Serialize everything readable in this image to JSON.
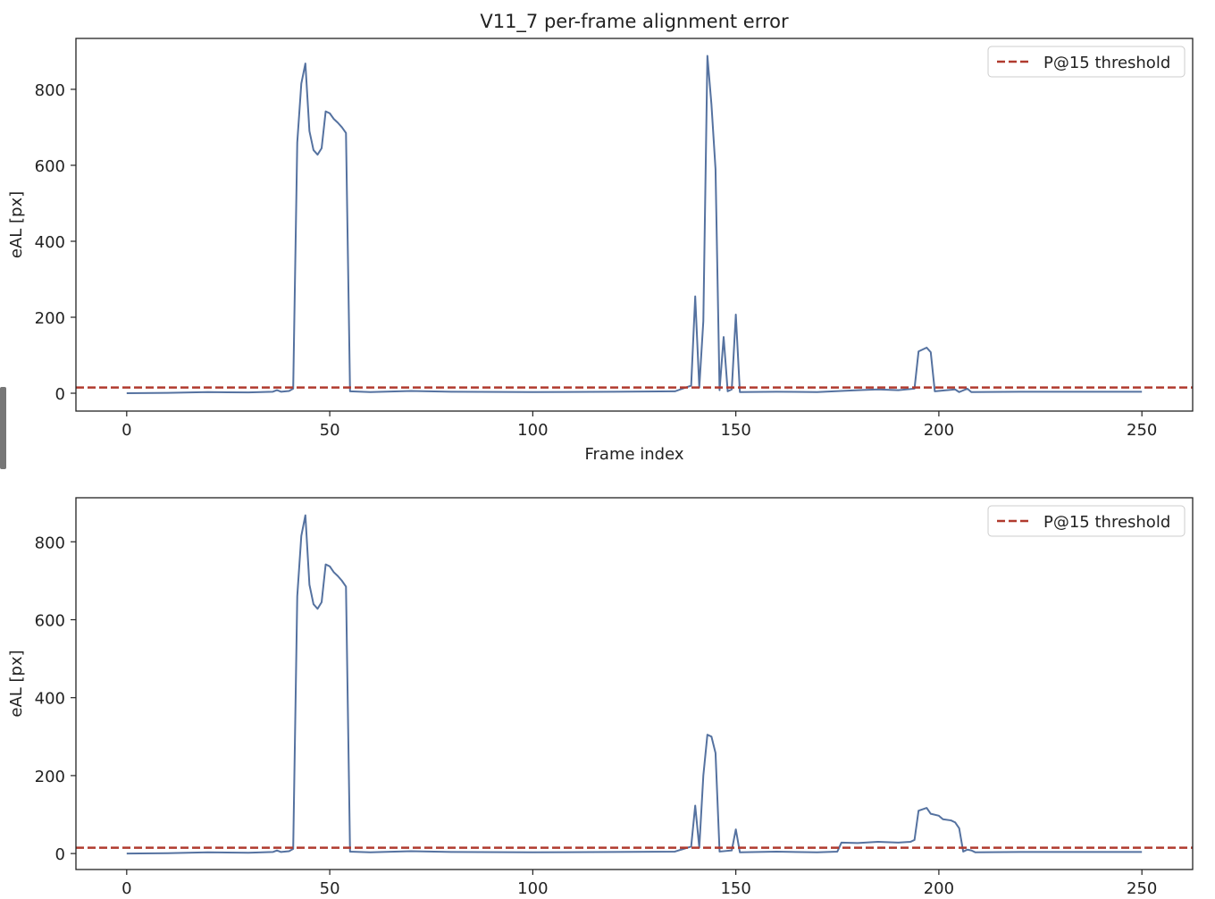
{
  "chart_data": [
    {
      "type": "line",
      "title": "V11_7  per-frame alignment error",
      "xlabel": "Frame index",
      "ylabel": "eAL  [px]",
      "xlim": [
        -12.5,
        262.5
      ],
      "xticks": [
        0,
        50,
        100,
        150,
        200,
        250
      ],
      "ylim": [
        -47,
        934
      ],
      "yticks": [
        0,
        200,
        400,
        600,
        800
      ],
      "legend": "upper right",
      "threshold": {
        "name": "P@15 threshold",
        "value": 15,
        "color": "#b03a2e"
      },
      "x": [
        0,
        10,
        20,
        30,
        36,
        37,
        38,
        40,
        41,
        42,
        43,
        44,
        45,
        46,
        47,
        48,
        49,
        50,
        51,
        52,
        53,
        54,
        55,
        60,
        70,
        80,
        100,
        120,
        135,
        139,
        140,
        141,
        142,
        143,
        144,
        145,
        146,
        147,
        148,
        149,
        150,
        151,
        160,
        170,
        180,
        185,
        190,
        194,
        195,
        196,
        197,
        198,
        199,
        204,
        205,
        207,
        208,
        220,
        250
      ],
      "series": [
        {
          "color": "#5572a0",
          "values": [
            0,
            1,
            3,
            2,
            4,
            8,
            4,
            6,
            12,
            660,
            815,
            868,
            690,
            640,
            628,
            645,
            742,
            737,
            722,
            712,
            700,
            685,
            5,
            3,
            6,
            4,
            3,
            4,
            5,
            20,
            255,
            15,
            190,
            888,
            760,
            590,
            8,
            148,
            5,
            10,
            207,
            3,
            4,
            3,
            8,
            10,
            8,
            12,
            110,
            115,
            120,
            108,
            5,
            10,
            3,
            12,
            3,
            4,
            4
          ]
        }
      ]
    },
    {
      "type": "line",
      "ylabel": "eAL  [px]",
      "xlim": [
        -12.5,
        262.5
      ],
      "xticks": [
        0,
        50,
        100,
        150,
        200,
        250
      ],
      "ylim": [
        -41,
        913
      ],
      "yticks": [
        0,
        200,
        400,
        600,
        800
      ],
      "legend": "upper right",
      "threshold": {
        "name": "P@15 threshold",
        "value": 15,
        "color": "#b03a2e"
      },
      "x": [
        0,
        10,
        20,
        30,
        36,
        37,
        38,
        40,
        41,
        42,
        43,
        44,
        45,
        46,
        47,
        48,
        49,
        50,
        51,
        52,
        53,
        54,
        55,
        60,
        70,
        80,
        100,
        120,
        135,
        139,
        140,
        141,
        142,
        143,
        144,
        145,
        146,
        149,
        150,
        151,
        160,
        170,
        175,
        176,
        180,
        185,
        190,
        193,
        194,
        195,
        197,
        198,
        200,
        201,
        203,
        204,
        205,
        206,
        207,
        208,
        209,
        220,
        250
      ],
      "series": [
        {
          "color": "#5572a0",
          "values": [
            0,
            1,
            3,
            2,
            4,
            8,
            4,
            6,
            12,
            660,
            815,
            868,
            690,
            640,
            628,
            645,
            742,
            737,
            722,
            712,
            700,
            685,
            5,
            3,
            6,
            4,
            3,
            4,
            5,
            18,
            123,
            15,
            200,
            305,
            300,
            258,
            5,
            8,
            62,
            3,
            5,
            3,
            5,
            28,
            27,
            30,
            28,
            30,
            35,
            110,
            117,
            102,
            97,
            88,
            85,
            80,
            65,
            5,
            10,
            8,
            3,
            4,
            4
          ]
        }
      ]
    }
  ]
}
